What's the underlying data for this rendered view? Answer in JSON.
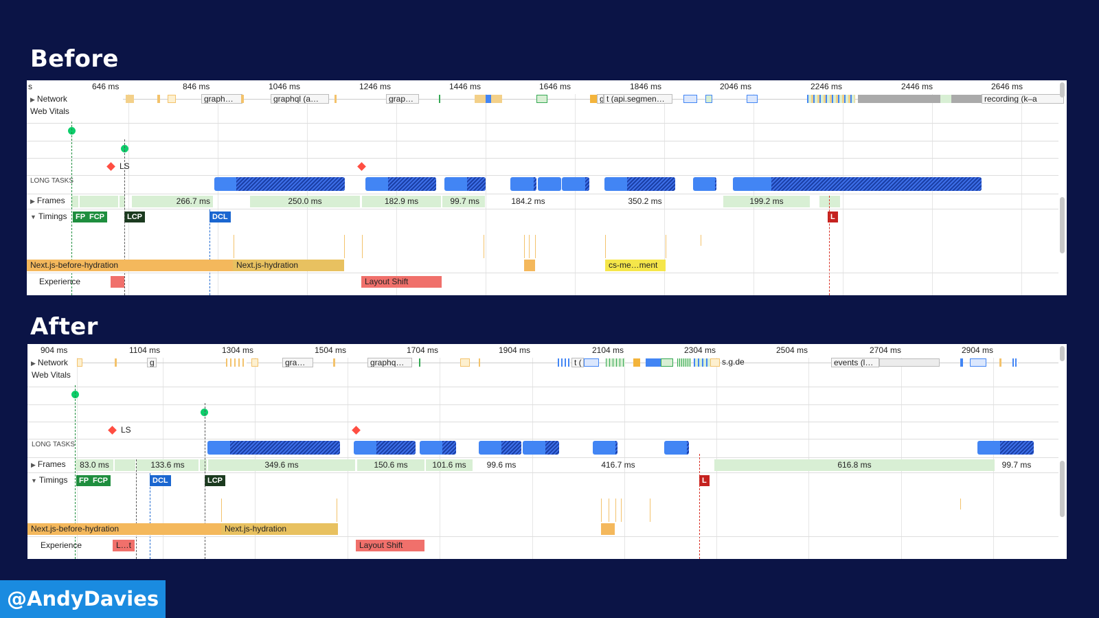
{
  "headings": {
    "before": "Before",
    "after": "After"
  },
  "handle": "@AndyDavies",
  "labels": {
    "network": "Network",
    "web_vitals": "Web Vitals",
    "long_tasks": "LONG TASKS",
    "frames": "Frames",
    "timings": "Timings",
    "experience": "Experience",
    "ls": "LS"
  },
  "before": {
    "ruler": [
      "s",
      "646 ms",
      "846 ms",
      "1046 ms",
      "1246 ms",
      "1446 ms",
      "1646 ms",
      "1846 ms",
      "2046 ms",
      "2246 ms",
      "2446 ms",
      "2646 ms"
    ],
    "network": [
      "graph…",
      "graphql (a…",
      "grap…",
      "g",
      "t (api.segmen…",
      "recording (k–a"
    ],
    "frames": [
      "266.7 ms",
      "250.0 ms",
      "182.9 ms",
      "99.7 ms",
      "184.2 ms",
      "350.2 ms",
      "199.2 ms"
    ],
    "timings": {
      "fp": "FP",
      "fcp": "FCP",
      "lcp": "LCP",
      "dcl": "DCL",
      "l": "L"
    },
    "bars": {
      "before_hydration": "Next.js-before-hydration",
      "hydration": "Next.js-hydration",
      "cs": "cs-me…ment"
    },
    "experience": {
      "layout_shift": "Layout Shift"
    }
  },
  "after": {
    "ruler": [
      "904 ms",
      "1104 ms",
      "1304 ms",
      "1504 ms",
      "1704 ms",
      "1904 ms",
      "2104 ms",
      "2304 ms",
      "2504 ms",
      "2704 ms",
      "2904 ms"
    ],
    "network": [
      "g",
      "gra…",
      "graphq…",
      "t (",
      "s.g.de",
      "events (l…"
    ],
    "frames": [
      "83.0 ms",
      "133.6 ms",
      "349.6 ms",
      "150.6 ms",
      "101.6 ms",
      "99.6 ms",
      "416.7 ms",
      "616.8 ms",
      "99.7 ms"
    ],
    "timings": {
      "fp": "FP",
      "fcp": "FCP",
      "dcl": "DCL",
      "lcp": "LCP",
      "l": "L"
    },
    "bars": {
      "before_hydration": "Next.js-before-hydration",
      "hydration": "Next.js-hydration"
    },
    "experience": {
      "l_t": "L…t",
      "layout_shift": "Layout Shift"
    }
  },
  "colors": {
    "background": "#0b1446",
    "long_task": "#4285f4",
    "frame": "#d8efd4",
    "fp": "#1e8e3e",
    "lcp": "#1b3a1f",
    "dcl": "#1a66d0",
    "load": "#c5221f",
    "before_hydration": "#f4b85c",
    "hydration": "#e8c160",
    "cs": "#f5e64a",
    "layout_shift": "#f0706b",
    "handle": "#1a8be0"
  }
}
